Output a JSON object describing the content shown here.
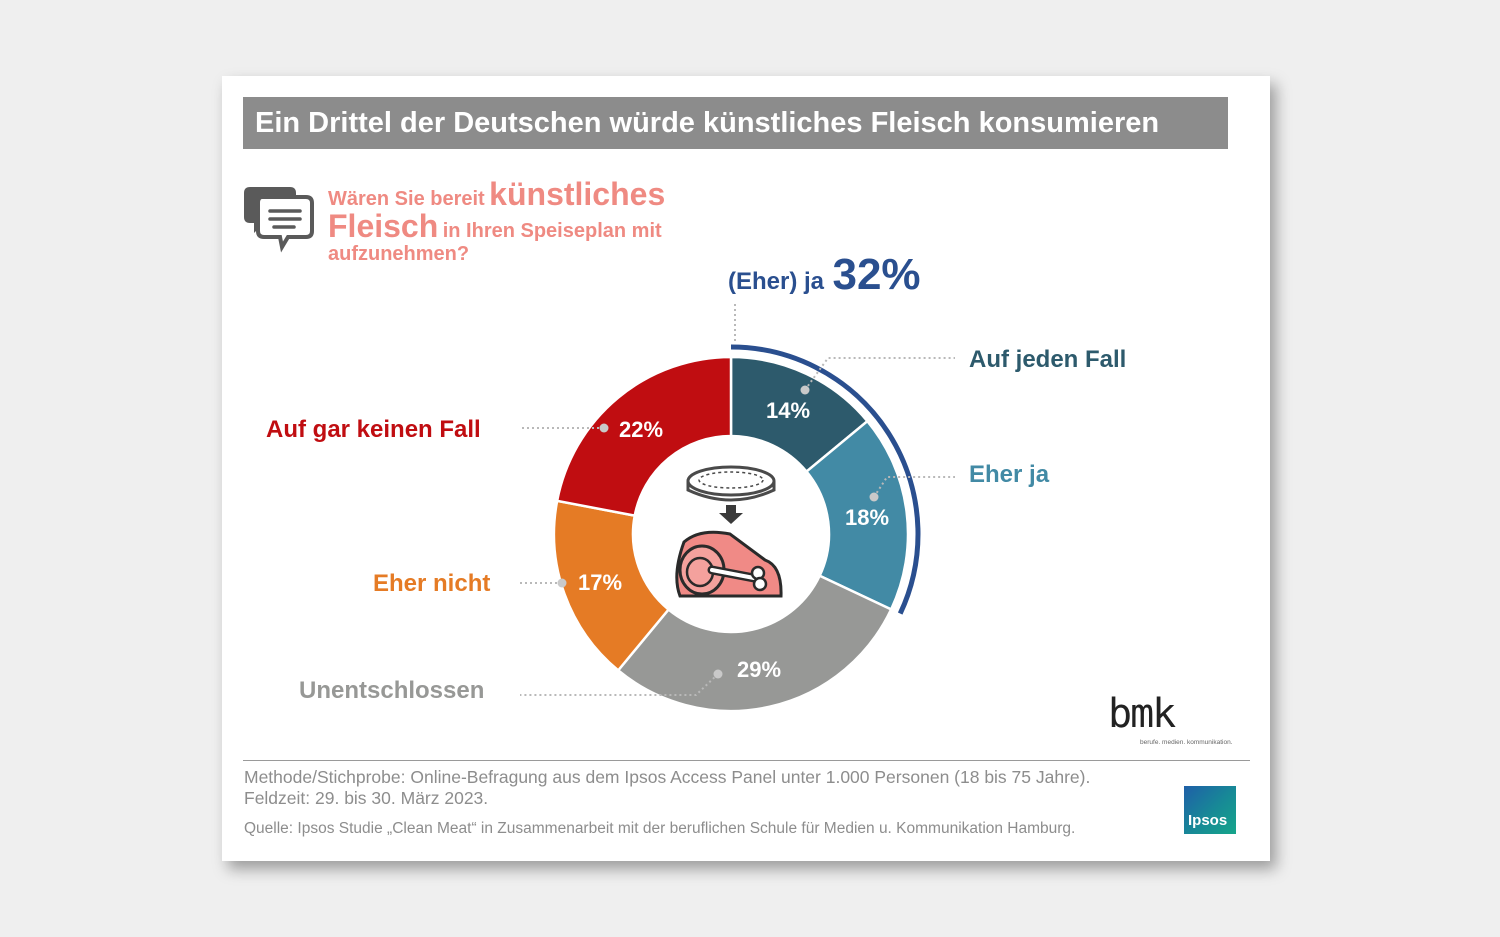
{
  "title": "Ein Drittel der Deutschen würde künstliches Fleisch konsumieren",
  "question": {
    "part1": "Wären Sie bereit",
    "emphasis1": "künstliches",
    "emphasis2": "Fleisch",
    "part2": "in Ihren Speiseplan mit",
    "part3": "aufzunehmen?"
  },
  "summary": {
    "label": "(Eher) ja",
    "value": "32%"
  },
  "chart_data": {
    "type": "pie",
    "variant": "donut",
    "title": "",
    "slices": [
      {
        "label": "Auf jeden Fall",
        "value": 14,
        "display": "14%",
        "color": "#2d5a6c"
      },
      {
        "label": "Eher ja",
        "value": 18,
        "display": "18%",
        "color": "#428aa5"
      },
      {
        "label": "Unentschlossen",
        "value": 29,
        "display": "29%",
        "color": "#979896"
      },
      {
        "label": "Eher nicht",
        "value": 17,
        "display": "17%",
        "color": "#e57b25"
      },
      {
        "label": "Auf gar keinen Fall",
        "value": 22,
        "display": "22%",
        "color": "#c00d11"
      }
    ],
    "highlight": {
      "label": "(Eher) ja",
      "value": 32,
      "color": "#2a4f8f"
    }
  },
  "footer": {
    "method": "Methode/Stichprobe:  Online-Befragung  aus  dem  Ipsos  Access  Panel  unter  1.000  Personen  (18  bis  75  Jahre).",
    "fieldtime": "Feldzeit:  29.  bis  30.  März  2023.",
    "source": "Quelle: Ipsos Studie „Clean Meat“ in Zusammenarbeit mit der beruflichen Schule für Medien u. Kommunikation Hamburg."
  },
  "logos": {
    "bmk": "bmk",
    "bmk_tagline": "berufe. medien. kommunikation.",
    "ipsos": "Ipsos"
  },
  "icons": [
    "speech-bubbles-icon",
    "petri-dish-icon",
    "arrow-down-icon",
    "meat-icon"
  ]
}
